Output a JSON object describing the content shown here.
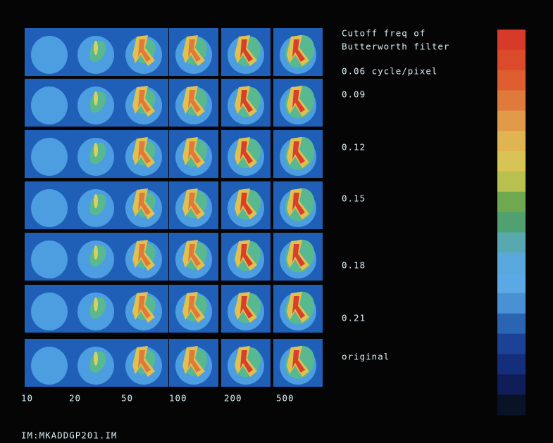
{
  "header": {
    "lines": [
      "Cutoff freq of",
      "Butterworth filter"
    ]
  },
  "rows": [
    "0.06 cycle/pixel",
    "0.09",
    "0.12",
    "0.15",
    "0.18",
    "0.21",
    "original"
  ],
  "columns": [
    "10",
    "20",
    "50",
    "100",
    "200",
    "500"
  ],
  "footer": "IM:MKADDGP201.IM"
}
